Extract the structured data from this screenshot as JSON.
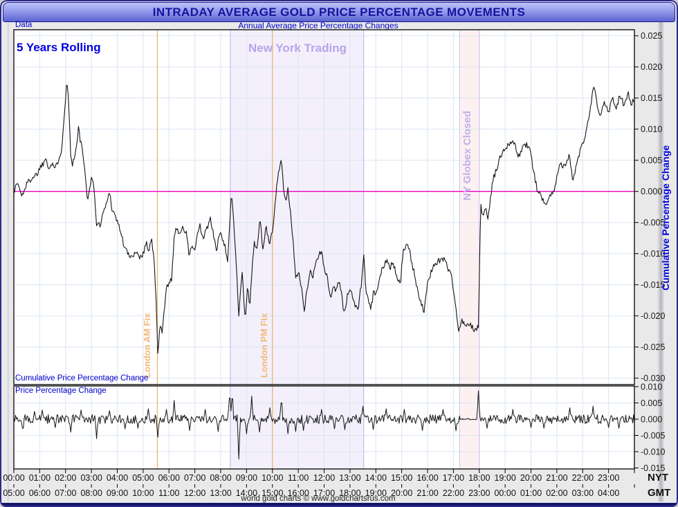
{
  "header": {
    "title": "INTRADAY AVERAGE GOLD PRICE PERCENTAGE MOVEMENTS",
    "data_tab": "Data",
    "subtitle": "Annual Average Price Percentage Changes"
  },
  "footer": {
    "credit": "world gold charts © www.goldchartsrus.com"
  },
  "axes": {
    "nyt": {
      "caption": "NYT",
      "labels": [
        "00:00",
        "01:00",
        "02:00",
        "03:00",
        "04:00",
        "05:00",
        "06:00",
        "07:00",
        "08:00",
        "09:00",
        "10:00",
        "11:00",
        "12:00",
        "13:00",
        "14:00",
        "15:00",
        "16:00",
        "17:00",
        "18:00",
        "19:00",
        "20:00",
        "21:00",
        "22:00",
        "23:00"
      ]
    },
    "gmt": {
      "caption": "GMT",
      "labels": [
        "05:00",
        "06:00",
        "07:00",
        "08:00",
        "09:00",
        "10:00",
        "11:00",
        "12:00",
        "13:00",
        "14:00",
        "15:00",
        "16:00",
        "17:00",
        "18:00",
        "19:00",
        "20:00",
        "21:00",
        "22:00",
        "23:00",
        "00:00",
        "01:00",
        "02:00",
        "03:00",
        "04:00"
      ]
    }
  },
  "annotations": {
    "rolling_window": "5 Years Rolling",
    "ny_trading": {
      "label": "New York Trading",
      "start_hour": 8.37,
      "end_hour": 13.53
    },
    "globex_closed": {
      "label": "NY Globex Closed",
      "start_hour": 17.24,
      "end_hour": 18.0
    },
    "london_am_fix": {
      "label": "London AM Fix",
      "hour": 5.55
    },
    "london_pm_fix": {
      "label": "London PM Fix",
      "hour": 10.0
    }
  },
  "colors": {
    "accent_blue": "#0000d8",
    "magenta_zero_line": "#ee00c8",
    "orange_fix_line": "#f2ad6a",
    "purple_band_text": "#b6a5e8",
    "ny_band_fill": "#f3f0fb",
    "ny_band_edge": "#b9b0e8",
    "globex_band_fill": "#fdf0f1",
    "globex_band_edge": "#ccc3f0",
    "grid": "#dae5f1",
    "series": "#141414",
    "title_text": "#14149c"
  },
  "chart_data": [
    {
      "type": "line",
      "name": "cumulative",
      "panel_label": "Cumulative Price Percentage Change",
      "ylabel": "Cumulative Percentage Change",
      "xlim_hours": [
        0,
        24
      ],
      "ylim": [
        -0.031,
        0.026
      ],
      "yticks": [
        0.025,
        0.02,
        0.015,
        0.01,
        0.005,
        0.0,
        -0.005,
        -0.01,
        -0.015,
        -0.02,
        -0.025,
        -0.03
      ],
      "zero_line": 0.0,
      "noise_amplitude": 0.0005,
      "points": [
        [
          0,
          0
        ],
        [
          0.15,
          0.0015
        ],
        [
          0.3,
          -0.0008
        ],
        [
          0.5,
          0.0012
        ],
        [
          0.7,
          0.0022
        ],
        [
          0.9,
          0.0028
        ],
        [
          1.0,
          0.0038
        ],
        [
          1.15,
          0.0046
        ],
        [
          1.25,
          0.0055
        ],
        [
          1.35,
          0.0038
        ],
        [
          1.5,
          0.0045
        ],
        [
          1.6,
          0.0035
        ],
        [
          1.75,
          0.0055
        ],
        [
          1.85,
          0.0068
        ],
        [
          1.95,
          0.0125
        ],
        [
          2.05,
          0.0177
        ],
        [
          2.1,
          0.0155
        ],
        [
          2.15,
          0.0112
        ],
        [
          2.2,
          0.0062
        ],
        [
          2.27,
          0.0042
        ],
        [
          2.35,
          0.0058
        ],
        [
          2.45,
          0.0078
        ],
        [
          2.5,
          0.0102
        ],
        [
          2.57,
          0.0082
        ],
        [
          2.65,
          0.0068
        ],
        [
          2.72,
          0.0042
        ],
        [
          2.8,
          0.0005
        ],
        [
          2.85,
          -0.0018
        ],
        [
          2.95,
          0.0012
        ],
        [
          3.0,
          0.0024
        ],
        [
          3.1,
          0.0005
        ],
        [
          3.2,
          -0.0052
        ],
        [
          3.32,
          -0.0055
        ],
        [
          3.45,
          -0.0035
        ],
        [
          3.58,
          -0.002
        ],
        [
          3.7,
          0.0
        ],
        [
          3.8,
          -0.0028
        ],
        [
          3.95,
          -0.0042
        ],
        [
          4.1,
          -0.006
        ],
        [
          4.25,
          -0.0085
        ],
        [
          4.4,
          -0.01
        ],
        [
          4.55,
          -0.0108
        ],
        [
          4.7,
          -0.0095
        ],
        [
          4.85,
          -0.0105
        ],
        [
          5.0,
          -0.01
        ],
        [
          5.12,
          -0.0082
        ],
        [
          5.22,
          -0.0095
        ],
        [
          5.32,
          -0.0075
        ],
        [
          5.42,
          -0.011
        ],
        [
          5.5,
          -0.017
        ],
        [
          5.57,
          -0.0268
        ],
        [
          5.65,
          -0.0215
        ],
        [
          5.75,
          -0.0225
        ],
        [
          5.83,
          -0.0185
        ],
        [
          5.9,
          -0.015
        ],
        [
          6.0,
          -0.0148
        ],
        [
          6.1,
          -0.0143
        ],
        [
          6.18,
          -0.0085
        ],
        [
          6.25,
          -0.0058
        ],
        [
          6.4,
          -0.0065
        ],
        [
          6.55,
          -0.006
        ],
        [
          6.68,
          -0.0068
        ],
        [
          6.78,
          -0.0104
        ],
        [
          6.88,
          -0.0086
        ],
        [
          6.98,
          -0.0097
        ],
        [
          7.1,
          -0.0072
        ],
        [
          7.2,
          -0.0055
        ],
        [
          7.32,
          -0.0078
        ],
        [
          7.45,
          -0.006
        ],
        [
          7.6,
          -0.0045
        ],
        [
          7.72,
          -0.007
        ],
        [
          7.85,
          -0.0098
        ],
        [
          7.95,
          -0.0062
        ],
        [
          8.05,
          -0.0078
        ],
        [
          8.17,
          -0.009
        ],
        [
          8.27,
          -0.011
        ],
        [
          8.35,
          -0.005
        ],
        [
          8.42,
          -0.0003
        ],
        [
          8.52,
          -0.006
        ],
        [
          8.62,
          -0.0125
        ],
        [
          8.7,
          -0.0201
        ],
        [
          8.78,
          -0.015
        ],
        [
          8.84,
          -0.0125
        ],
        [
          8.9,
          -0.018
        ],
        [
          8.96,
          -0.0205
        ],
        [
          9.05,
          -0.0145
        ],
        [
          9.12,
          -0.019
        ],
        [
          9.2,
          -0.0135
        ],
        [
          9.3,
          -0.008
        ],
        [
          9.4,
          -0.0095
        ],
        [
          9.52,
          -0.0042
        ],
        [
          9.63,
          -0.0095
        ],
        [
          9.75,
          -0.0055
        ],
        [
          9.87,
          -0.0085
        ],
        [
          10.0,
          -0.0065
        ],
        [
          10.1,
          -0.002
        ],
        [
          10.22,
          0.003
        ],
        [
          10.35,
          0.0053
        ],
        [
          10.44,
          -0.0005
        ],
        [
          10.52,
          -0.0018
        ],
        [
          10.6,
          0.0006
        ],
        [
          10.7,
          -0.0035
        ],
        [
          10.8,
          -0.0082
        ],
        [
          10.9,
          -0.0134
        ],
        [
          11.0,
          -0.013
        ],
        [
          11.1,
          -0.0148
        ],
        [
          11.23,
          -0.0193
        ],
        [
          11.35,
          -0.0155
        ],
        [
          11.45,
          -0.0126
        ],
        [
          11.55,
          -0.014
        ],
        [
          11.7,
          -0.011
        ],
        [
          11.9,
          -0.0095
        ],
        [
          12.0,
          -0.012
        ],
        [
          12.12,
          -0.014
        ],
        [
          12.25,
          -0.0171
        ],
        [
          12.35,
          -0.015
        ],
        [
          12.45,
          -0.016
        ],
        [
          12.55,
          -0.0145
        ],
        [
          12.65,
          -0.0155
        ],
        [
          12.78,
          -0.0201
        ],
        [
          12.9,
          -0.0165
        ],
        [
          13.02,
          -0.016
        ],
        [
          13.15,
          -0.0175
        ],
        [
          13.3,
          -0.0193
        ],
        [
          13.45,
          -0.0145
        ],
        [
          13.53,
          -0.0102
        ],
        [
          13.62,
          -0.016
        ],
        [
          13.8,
          -0.0191
        ],
        [
          13.92,
          -0.016
        ],
        [
          14.05,
          -0.0165
        ],
        [
          14.2,
          -0.013
        ],
        [
          14.44,
          -0.0106
        ],
        [
          14.55,
          -0.0125
        ],
        [
          14.65,
          -0.011
        ],
        [
          14.8,
          -0.0135
        ],
        [
          14.95,
          -0.015
        ],
        [
          15.05,
          -0.0095
        ],
        [
          15.25,
          -0.0087
        ],
        [
          15.42,
          -0.012
        ],
        [
          15.6,
          -0.0155
        ],
        [
          15.86,
          -0.0195
        ],
        [
          16.0,
          -0.015
        ],
        [
          16.2,
          -0.012
        ],
        [
          16.42,
          -0.0112
        ],
        [
          16.66,
          -0.0107
        ],
        [
          16.8,
          -0.0125
        ],
        [
          16.95,
          -0.014
        ],
        [
          17.05,
          -0.0173
        ],
        [
          17.2,
          -0.0224
        ],
        [
          17.35,
          -0.0207
        ],
        [
          17.5,
          -0.0218
        ],
        [
          17.65,
          -0.0214
        ],
        [
          17.8,
          -0.0222
        ],
        [
          17.97,
          -0.0219
        ],
        [
          18.05,
          -0.0022
        ],
        [
          18.15,
          -0.004
        ],
        [
          18.25,
          -0.003
        ],
        [
          18.35,
          -0.0042
        ],
        [
          18.45,
          -0.0005
        ],
        [
          18.55,
          0.0022
        ],
        [
          18.7,
          0.0039
        ],
        [
          18.85,
          0.006
        ],
        [
          19.0,
          0.007
        ],
        [
          19.15,
          0.0078
        ],
        [
          19.3,
          0.0082
        ],
        [
          19.45,
          0.0065
        ],
        [
          19.55,
          0.0054
        ],
        [
          19.7,
          0.0075
        ],
        [
          19.92,
          0.0074
        ],
        [
          20.1,
          0.0033
        ],
        [
          20.25,
          0.0
        ],
        [
          20.4,
          -0.001
        ],
        [
          20.6,
          -0.0018
        ],
        [
          20.75,
          -0.0005
        ],
        [
          20.9,
          0.0
        ],
        [
          21.1,
          0.0047
        ],
        [
          21.3,
          0.004
        ],
        [
          21.5,
          0.0058
        ],
        [
          21.62,
          0.0013
        ],
        [
          21.75,
          0.004
        ],
        [
          21.9,
          0.0065
        ],
        [
          22.1,
          0.0086
        ],
        [
          22.25,
          0.012
        ],
        [
          22.43,
          0.0171
        ],
        [
          22.55,
          0.014
        ],
        [
          22.67,
          0.0119
        ],
        [
          22.85,
          0.0145
        ],
        [
          23.0,
          0.0128
        ],
        [
          23.15,
          0.015
        ],
        [
          23.3,
          0.0135
        ],
        [
          23.45,
          0.0156
        ],
        [
          23.6,
          0.0138
        ],
        [
          23.75,
          0.0158
        ],
        [
          23.87,
          0.0141
        ],
        [
          24.0,
          0.0146
        ]
      ]
    },
    {
      "type": "line",
      "name": "minute_change",
      "panel_label": "Price Percentage Change",
      "xlim_hours": [
        0,
        24
      ],
      "ylim": [
        -0.0153,
        0.0102
      ],
      "yticks": [
        0.01,
        0.005,
        0.0,
        -0.005,
        -0.01,
        -0.015
      ],
      "baseline": 0.0,
      "noise_amplitude": 0.0014,
      "quiet_segment": [
        17.25,
        17.95
      ],
      "spikes": [
        [
          0.35,
          -0.0028
        ],
        [
          0.8,
          0.0024
        ],
        [
          1.1,
          0.0028
        ],
        [
          1.6,
          -0.0026
        ],
        [
          2.2,
          -0.004
        ],
        [
          2.6,
          0.0028
        ],
        [
          3.2,
          -0.006
        ],
        [
          3.7,
          0.0026
        ],
        [
          4.3,
          -0.003
        ],
        [
          4.8,
          -0.0028
        ],
        [
          5.2,
          0.0032
        ],
        [
          5.57,
          -0.0056
        ],
        [
          5.9,
          0.003
        ],
        [
          6.2,
          0.0058
        ],
        [
          6.8,
          -0.0035
        ],
        [
          7.4,
          0.003
        ],
        [
          7.9,
          -0.0038
        ],
        [
          8.35,
          0.0065
        ],
        [
          8.45,
          0.0063
        ],
        [
          8.7,
          -0.0123
        ],
        [
          9.0,
          -0.0045
        ],
        [
          9.2,
          0.0071
        ],
        [
          9.5,
          -0.004
        ],
        [
          9.9,
          0.0035
        ],
        [
          10.35,
          0.005
        ],
        [
          10.6,
          -0.0045
        ],
        [
          10.9,
          -0.0038
        ],
        [
          11.2,
          -0.0035
        ],
        [
          11.9,
          0.003
        ],
        [
          12.4,
          -0.003
        ],
        [
          12.8,
          -0.0032
        ],
        [
          13.5,
          0.004
        ],
        [
          13.9,
          -0.0032
        ],
        [
          14.4,
          0.0032
        ],
        [
          15.1,
          0.003
        ],
        [
          15.8,
          -0.0035
        ],
        [
          16.6,
          0.003
        ],
        [
          17.1,
          -0.0036
        ],
        [
          17.97,
          0.0087
        ],
        [
          18.3,
          -0.0028
        ],
        [
          19.3,
          0.003
        ],
        [
          20.0,
          -0.0026
        ],
        [
          20.5,
          -0.0028
        ],
        [
          21.5,
          0.0035
        ],
        [
          22.4,
          0.004
        ],
        [
          23.0,
          -0.0026
        ],
        [
          23.4,
          -0.0028
        ]
      ]
    }
  ]
}
